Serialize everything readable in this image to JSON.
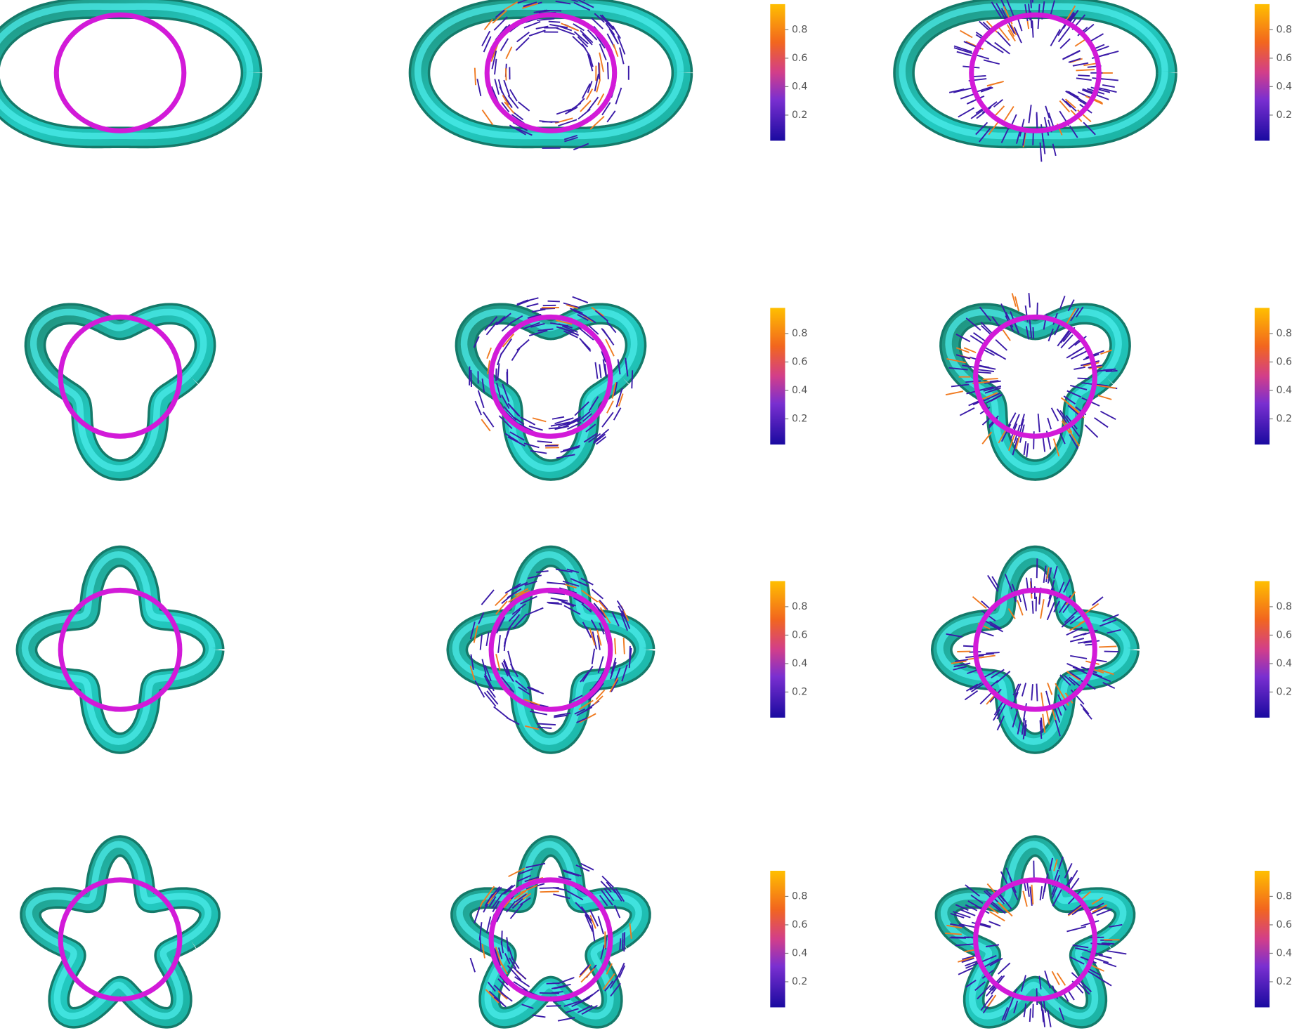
{
  "rows": [
    {
      "colorbars": [
        {
          "range": [
            0.02,
            0.98
          ],
          "ticks": [
            0.2,
            0.4,
            0.6,
            0.8
          ]
        },
        {
          "range": [
            0.02,
            0.98
          ],
          "ticks": [
            0.2,
            0.4,
            0.6,
            0.8
          ]
        }
      ]
    },
    {
      "colorbars": [
        {
          "range": [
            0.02,
            0.98
          ],
          "ticks": [
            0.2,
            0.4,
            0.6,
            0.8
          ]
        },
        {
          "range": [
            0.02,
            0.98
          ],
          "ticks": [
            0.2,
            0.4,
            0.6,
            0.8
          ]
        }
      ]
    },
    {
      "colorbars": [
        {
          "range": [
            0.02,
            0.98
          ],
          "ticks": [
            0.2,
            0.4,
            0.6,
            0.8
          ]
        },
        {
          "range": [
            0.02,
            0.98
          ],
          "ticks": [
            0.2,
            0.4,
            0.6,
            0.8
          ]
        }
      ]
    },
    {
      "colorbars": [
        {
          "range": [
            0.02,
            0.98
          ],
          "ticks": [
            0.2,
            0.4,
            0.6,
            0.8
          ]
        },
        {
          "range": [
            0.02,
            0.98
          ],
          "ticks": [
            0.2,
            0.4,
            0.6,
            0.8
          ]
        }
      ]
    }
  ]
}
